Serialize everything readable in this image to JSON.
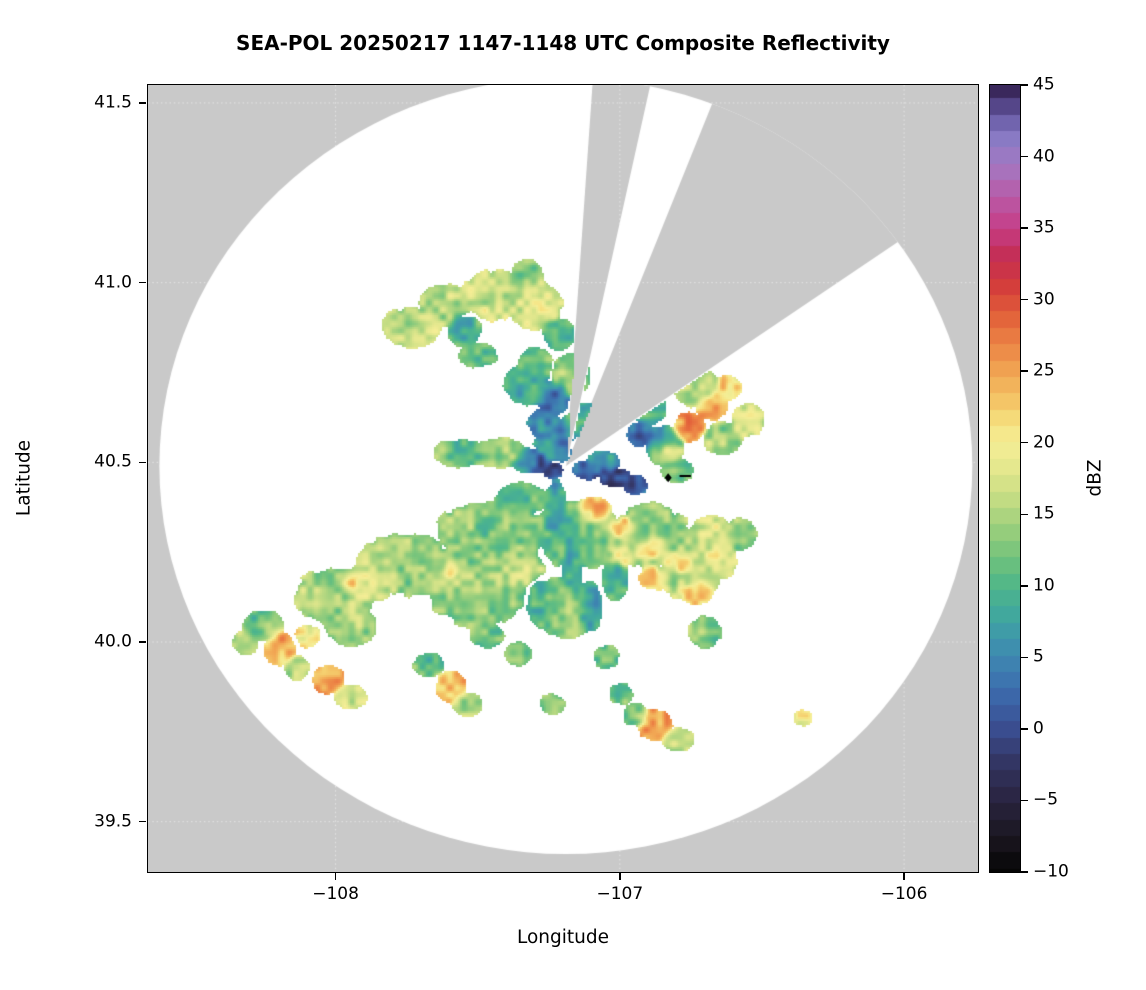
{
  "title": "SEA-POL 20250217 1147-1148 UTC Composite Reflectivity",
  "chart_data": {
    "type": "heatmap",
    "title": "SEA-POL 20250217 1147-1148 UTC Composite Reflectivity",
    "xlabel": "Longitude",
    "ylabel": "Latitude",
    "colorbar_label": "dBZ",
    "xlim": [
      -108.66,
      -105.74
    ],
    "ylim": [
      39.36,
      41.55
    ],
    "x_ticks": [
      -108,
      -107,
      -106
    ],
    "x_tick_labels": [
      "−108",
      "−107",
      "−106"
    ],
    "y_ticks": [
      39.5,
      40.0,
      40.5,
      41.0,
      41.5
    ],
    "y_tick_labels": [
      "39.5",
      "40.0",
      "40.5",
      "41.0",
      "41.5"
    ],
    "colorbar_range": [
      -10,
      45
    ],
    "colorbar_ticks": [
      -10,
      -5,
      0,
      5,
      10,
      15,
      20,
      25,
      30,
      35,
      40,
      45
    ],
    "colorbar_tick_labels": [
      "−10",
      "−5",
      "0",
      "5",
      "10",
      "15",
      "20",
      "25",
      "30",
      "35",
      "40",
      "45"
    ],
    "outside_color": "#c9c9c9",
    "inside_color": "#ffffff",
    "grid": true,
    "radar": {
      "center_lon": -107.19,
      "center_lat": 40.49,
      "radius_lon_deg": 1.43,
      "radius_lat_deg": 1.08,
      "blocked_sectors_azimuth_deg": [
        [
          4,
          12.5
        ],
        [
          22,
          56
        ]
      ]
    },
    "markers": [
      {
        "type": "diamond",
        "lon": -106.83,
        "lat": 40.457,
        "color": "#000000"
      },
      {
        "type": "dash",
        "lon1": -106.79,
        "lon2": -106.75,
        "lat": 40.462,
        "color": "#000000"
      }
    ],
    "colormap_stops": [
      [
        -10,
        "#050505"
      ],
      [
        -8,
        "#18141c"
      ],
      [
        -6,
        "#241f33"
      ],
      [
        -4,
        "#2e2a4d"
      ],
      [
        -2,
        "#353969"
      ],
      [
        0,
        "#3a4d8f"
      ],
      [
        2,
        "#3c64a8"
      ],
      [
        4,
        "#3e7cb2"
      ],
      [
        6,
        "#3f93ae"
      ],
      [
        8,
        "#41a89e"
      ],
      [
        10,
        "#4fb78a"
      ],
      [
        12,
        "#72c37c"
      ],
      [
        14,
        "#9bcf7d"
      ],
      [
        16,
        "#c2dc83"
      ],
      [
        18,
        "#e2e78d"
      ],
      [
        20,
        "#f5ee96"
      ],
      [
        21.5,
        "#f6e07e"
      ],
      [
        23,
        "#f4c466"
      ],
      [
        25,
        "#f1a553"
      ],
      [
        27,
        "#ec8345"
      ],
      [
        29,
        "#e25f3a"
      ],
      [
        31,
        "#d43d3c"
      ],
      [
        33,
        "#c42e53"
      ],
      [
        35,
        "#c63d87"
      ],
      [
        37,
        "#bb58a5"
      ],
      [
        39,
        "#a873bd"
      ],
      [
        41,
        "#8f7fc9"
      ],
      [
        42.5,
        "#6f63ad"
      ],
      [
        44,
        "#4a3a7a"
      ],
      [
        45,
        "#33204f"
      ]
    ],
    "echo_cells_format": [
      "lon",
      "lat",
      "radius_lon_deg",
      "radius_lat_deg",
      "dbz"
    ],
    "echo_cells": [
      [
        -107.74,
        40.88,
        0.09,
        0.05,
        17
      ],
      [
        -107.62,
        40.94,
        0.08,
        0.05,
        15
      ],
      [
        -107.55,
        40.87,
        0.05,
        0.04,
        10
      ],
      [
        -107.44,
        40.97,
        0.1,
        0.06,
        17
      ],
      [
        -107.3,
        40.94,
        0.09,
        0.06,
        18
      ],
      [
        -107.33,
        41.02,
        0.05,
        0.04,
        13
      ],
      [
        -107.22,
        40.86,
        0.05,
        0.04,
        10
      ],
      [
        -107.5,
        40.8,
        0.06,
        0.03,
        12
      ],
      [
        -107.33,
        40.72,
        0.07,
        0.05,
        9
      ],
      [
        -107.24,
        40.68,
        0.05,
        0.04,
        3
      ],
      [
        -107.27,
        40.61,
        0.05,
        0.04,
        6
      ],
      [
        -107.17,
        40.75,
        0.06,
        0.05,
        13
      ],
      [
        -107.21,
        40.58,
        0.04,
        0.03,
        1
      ],
      [
        -107.12,
        40.62,
        0.05,
        0.04,
        8
      ],
      [
        -107.3,
        40.78,
        0.05,
        0.04,
        12
      ],
      [
        -107.56,
        40.53,
        0.08,
        0.035,
        12
      ],
      [
        -107.43,
        40.53,
        0.09,
        0.035,
        14
      ],
      [
        -107.32,
        40.51,
        0.06,
        0.03,
        6
      ],
      [
        -107.29,
        40.5,
        0.04,
        0.025,
        1
      ],
      [
        -107.24,
        40.48,
        0.03,
        0.02,
        -3
      ],
      [
        -107.21,
        40.54,
        0.03,
        0.03,
        1
      ],
      [
        -107.25,
        40.55,
        0.05,
        0.04,
        8
      ],
      [
        -107.18,
        40.6,
        0.04,
        0.03,
        10
      ],
      [
        -107.11,
        40.48,
        0.05,
        0.025,
        2
      ],
      [
        -107.02,
        40.46,
        0.05,
        0.025,
        0
      ],
      [
        -106.95,
        40.44,
        0.04,
        0.025,
        2
      ],
      [
        -107.06,
        40.5,
        0.05,
        0.03,
        6
      ],
      [
        -106.93,
        40.58,
        0.04,
        0.03,
        2
      ],
      [
        -106.85,
        40.55,
        0.06,
        0.05,
        8
      ],
      [
        -106.84,
        40.53,
        0.05,
        0.03,
        23
      ],
      [
        -106.76,
        40.6,
        0.05,
        0.035,
        26
      ],
      [
        -106.68,
        40.66,
        0.05,
        0.035,
        25
      ],
      [
        -106.62,
        40.71,
        0.04,
        0.03,
        21
      ],
      [
        -106.73,
        40.71,
        0.07,
        0.05,
        16
      ],
      [
        -106.64,
        40.57,
        0.06,
        0.04,
        14
      ],
      [
        -106.55,
        40.62,
        0.05,
        0.04,
        17
      ],
      [
        -106.9,
        40.65,
        0.05,
        0.04,
        9
      ],
      [
        -106.8,
        40.48,
        0.05,
        0.03,
        12
      ],
      [
        -107.45,
        40.3,
        0.18,
        0.08,
        13
      ],
      [
        -107.15,
        40.3,
        0.15,
        0.08,
        12
      ],
      [
        -107.75,
        40.22,
        0.15,
        0.08,
        15
      ],
      [
        -108.0,
        40.13,
        0.12,
        0.07,
        14
      ],
      [
        -107.5,
        40.14,
        0.15,
        0.08,
        13
      ],
      [
        -107.2,
        40.1,
        0.12,
        0.07,
        12
      ],
      [
        -106.9,
        40.3,
        0.12,
        0.08,
        14
      ],
      [
        -106.75,
        40.2,
        0.1,
        0.07,
        15
      ],
      [
        -106.68,
        40.28,
        0.08,
        0.06,
        16
      ],
      [
        -107.95,
        40.05,
        0.08,
        0.05,
        13
      ],
      [
        -107.7,
        40.25,
        0.08,
        0.05,
        18
      ],
      [
        -107.88,
        40.17,
        0.08,
        0.05,
        18
      ],
      [
        -107.35,
        40.22,
        0.08,
        0.05,
        17
      ],
      [
        -106.66,
        40.22,
        0.06,
        0.04,
        19
      ],
      [
        -107.09,
        40.37,
        0.05,
        0.03,
        25
      ],
      [
        -106.99,
        40.32,
        0.05,
        0.03,
        28
      ],
      [
        -106.89,
        40.27,
        0.05,
        0.03,
        27
      ],
      [
        -106.79,
        40.22,
        0.05,
        0.03,
        24
      ],
      [
        -107.0,
        40.24,
        0.04,
        0.025,
        21
      ],
      [
        -106.88,
        40.18,
        0.05,
        0.03,
        23
      ],
      [
        -106.73,
        40.14,
        0.05,
        0.03,
        24
      ],
      [
        -107.94,
        40.16,
        0.035,
        0.025,
        24
      ],
      [
        -108.1,
        40.02,
        0.04,
        0.03,
        22
      ],
      [
        -107.6,
        40.2,
        0.03,
        0.02,
        22
      ],
      [
        -107.23,
        40.36,
        0.035,
        0.08,
        7
      ],
      [
        -107.17,
        40.24,
        0.035,
        0.09,
        8
      ],
      [
        -107.11,
        40.1,
        0.04,
        0.06,
        7
      ],
      [
        -107.28,
        40.12,
        0.04,
        0.05,
        8
      ],
      [
        -107.02,
        40.18,
        0.04,
        0.05,
        9
      ],
      [
        -107.35,
        40.4,
        0.08,
        0.04,
        11
      ],
      [
        -106.58,
        40.3,
        0.05,
        0.04,
        13
      ],
      [
        -108.2,
        39.98,
        0.05,
        0.04,
        24
      ],
      [
        -108.26,
        40.05,
        0.06,
        0.04,
        13
      ],
      [
        -108.03,
        39.9,
        0.05,
        0.035,
        25
      ],
      [
        -107.95,
        39.85,
        0.05,
        0.03,
        17
      ],
      [
        -108.32,
        40.0,
        0.04,
        0.03,
        15
      ],
      [
        -108.14,
        39.93,
        0.04,
        0.03,
        16
      ],
      [
        -107.6,
        39.88,
        0.05,
        0.04,
        25
      ],
      [
        -107.54,
        39.83,
        0.05,
        0.03,
        16
      ],
      [
        -107.67,
        39.94,
        0.05,
        0.03,
        12
      ],
      [
        -107.36,
        39.97,
        0.04,
        0.03,
        12
      ],
      [
        -107.24,
        39.83,
        0.04,
        0.025,
        13
      ],
      [
        -107.05,
        39.96,
        0.04,
        0.03,
        12
      ],
      [
        -107.47,
        40.02,
        0.05,
        0.03,
        11
      ],
      [
        -107.0,
        39.86,
        0.04,
        0.03,
        14
      ],
      [
        -106.7,
        40.03,
        0.05,
        0.04,
        13
      ],
      [
        -106.88,
        39.77,
        0.055,
        0.04,
        26
      ],
      [
        -106.8,
        39.73,
        0.05,
        0.03,
        16
      ],
      [
        -106.36,
        39.79,
        0.03,
        0.02,
        20
      ],
      [
        -106.95,
        39.8,
        0.04,
        0.03,
        13
      ]
    ]
  }
}
